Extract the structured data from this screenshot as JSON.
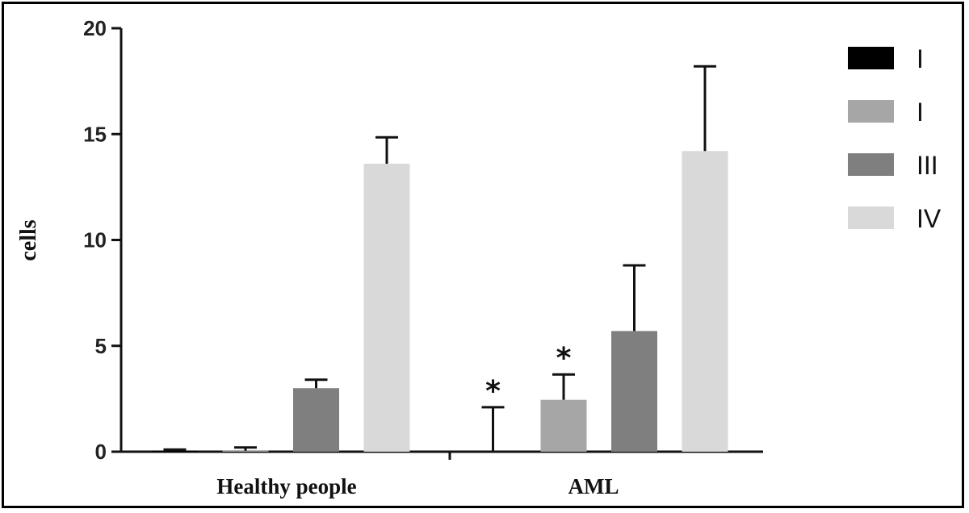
{
  "chart_data": {
    "type": "bar",
    "title": "",
    "xlabel": "",
    "ylabel": "cells",
    "ylim": [
      0,
      20
    ],
    "yticks": [
      "0",
      "5",
      "10",
      "15",
      "20"
    ],
    "categories": [
      "Healthy people",
      "AML"
    ],
    "series": [
      {
        "name": "I",
        "color": "#000000",
        "values": [
          0.05,
          0.0
        ],
        "errors": [
          0.05,
          2.1
        ],
        "annotations": [
          "",
          "*"
        ]
      },
      {
        "name": "I",
        "color": "#a6a6a6",
        "values": [
          0.05,
          2.45
        ],
        "errors": [
          0.15,
          1.2
        ],
        "annotations": [
          "",
          "*"
        ]
      },
      {
        "name": "III",
        "color": "#7f7f7f",
        "values": [
          3.0,
          5.7
        ],
        "errors": [
          0.4,
          3.1
        ],
        "annotations": [
          "",
          ""
        ]
      },
      {
        "name": "IV",
        "color": "#d9d9d9",
        "values": [
          13.6,
          14.2
        ],
        "errors": [
          1.25,
          4.0
        ],
        "annotations": [
          "",
          ""
        ]
      }
    ],
    "legend_position": "right",
    "grid": false
  }
}
